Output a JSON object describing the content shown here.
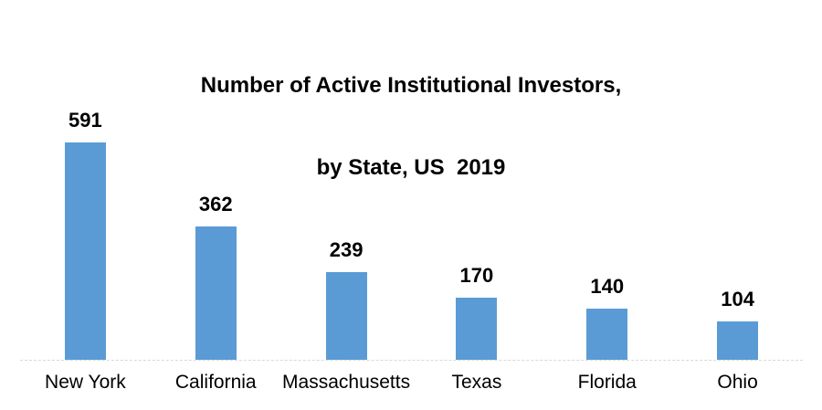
{
  "title": {
    "line1": "Number of Active Institutional Investors,",
    "line2": "by State, US  2019"
  },
  "chart_data": {
    "type": "bar",
    "title": "Number of Active Institutional Investors, by State, US 2019",
    "categories": [
      "New York",
      "California",
      "Massachusetts",
      "Texas",
      "Florida",
      "Ohio"
    ],
    "values": [
      591,
      362,
      239,
      170,
      140,
      104
    ],
    "xlabel": "",
    "ylabel": "",
    "ylim": [
      0,
      650
    ],
    "y_axis_visible": false,
    "grid": false,
    "legend_position": "none",
    "data_labels": "outside-end",
    "bar_color": "#5B9BD5",
    "axis_line_color": "#D9D9D9",
    "text_color": "#000000",
    "background_color": "#FFFFFF"
  }
}
